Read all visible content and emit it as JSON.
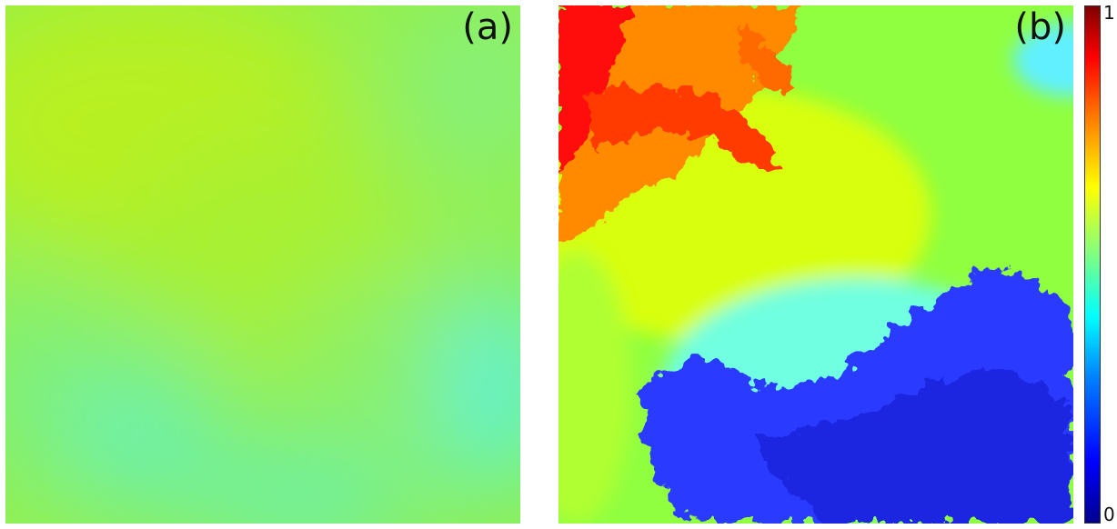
{
  "panels": [
    {
      "label": "(a)",
      "dominant_colors": [
        "#b8f020",
        "#7ff26a",
        "#5ff2d8"
      ]
    },
    {
      "label": "(b)",
      "dominant_colors": [
        "#ff0000",
        "#ff7a00",
        "#ffff00",
        "#8cff40",
        "#5fe9ff",
        "#2a3aff"
      ]
    }
  ],
  "colorbar": {
    "max_label": "1",
    "min_label": "0",
    "colormap": "jet"
  }
}
